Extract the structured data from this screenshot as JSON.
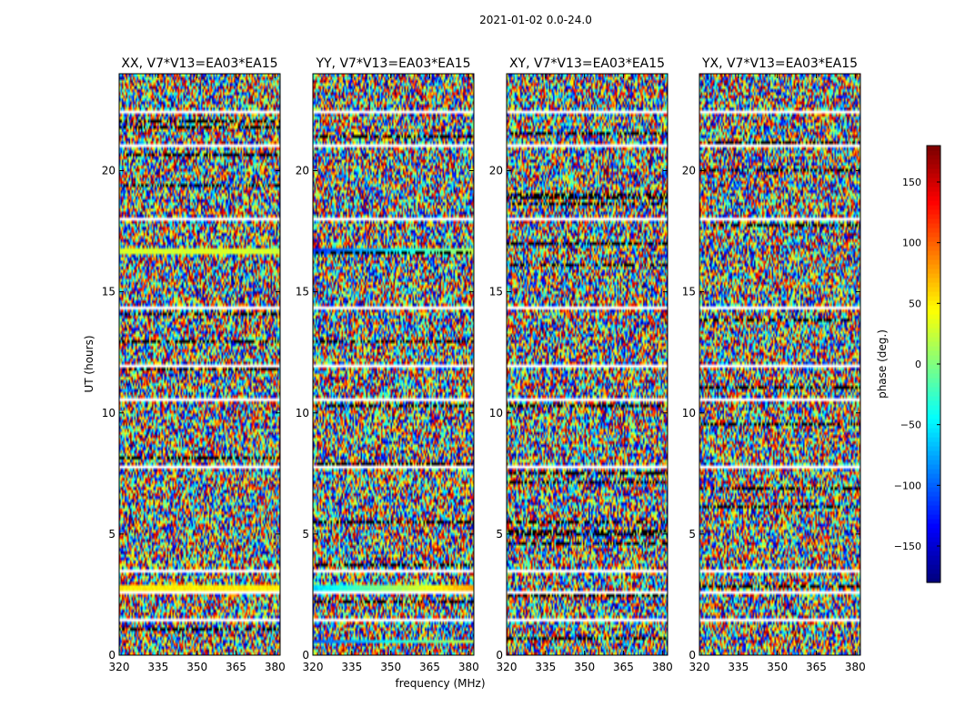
{
  "chart_data": {
    "type": "heatmap",
    "suptitle": "2021-01-02 0.0-24.0",
    "xlabel": "frequency (MHz)",
    "ylabel": "UT (hours)",
    "xlim": [
      320,
      382
    ],
    "ylim": [
      0,
      24
    ],
    "xticks": [
      320,
      335,
      350,
      365,
      380
    ],
    "xtick_labels": [
      "320",
      "335",
      "350",
      "365",
      "380"
    ],
    "yticks": [
      0,
      5,
      10,
      15,
      20
    ],
    "ytick_labels": [
      "0",
      "5",
      "10",
      "15",
      "20"
    ],
    "colormap": "jet",
    "colorbar": {
      "label": "phase (deg.)",
      "range": [
        -180,
        180
      ],
      "ticks": [
        -150,
        -100,
        -50,
        0,
        50,
        100,
        150
      ],
      "tick_labels": [
        "−150",
        "−100",
        "−50",
        "0",
        "50",
        "100",
        "150"
      ]
    },
    "panels": [
      {
        "title": "XX, V7*V13=EA03*EA15",
        "seed": 11
      },
      {
        "title": "YY, V7*V13=EA03*EA15",
        "seed": 23
      },
      {
        "title": "XY, V7*V13=EA03*EA15",
        "seed": 37
      },
      {
        "title": "YX, V7*V13=EA03*EA15",
        "seed": 41
      }
    ],
    "flagged_gaps_ut_hours": [
      [
        0.35,
        0.42
      ],
      [
        1.45,
        1.52
      ],
      [
        2.55,
        2.62
      ],
      [
        3.45,
        3.5
      ],
      [
        5.75,
        5.82
      ],
      [
        6.05,
        6.12
      ],
      [
        7.75,
        7.85
      ],
      [
        10.5,
        10.58
      ],
      [
        11.9,
        11.96
      ],
      [
        14.3,
        14.35
      ],
      [
        17.9,
        18.08
      ],
      [
        21.0,
        21.1
      ],
      [
        22.4,
        22.45
      ],
      [
        23.35,
        23.42
      ]
    ],
    "coherent_bands_ut_hours": [
      {
        "panel": "XX",
        "ut": [
          2.6,
          2.95
        ],
        "phase_deg": 50
      },
      {
        "panel": "XX",
        "ut": [
          16.55,
          16.75
        ],
        "phase_deg": 30
      },
      {
        "panel": "YY",
        "ut": [
          2.6,
          2.95
        ],
        "phase_deg": -60
      },
      {
        "panel": "YY",
        "ut": [
          16.55,
          16.75
        ],
        "phase_deg": -120
      },
      {
        "panel": "YY",
        "ut": [
          0.45,
          0.6
        ],
        "phase_deg": -110
      }
    ]
  }
}
